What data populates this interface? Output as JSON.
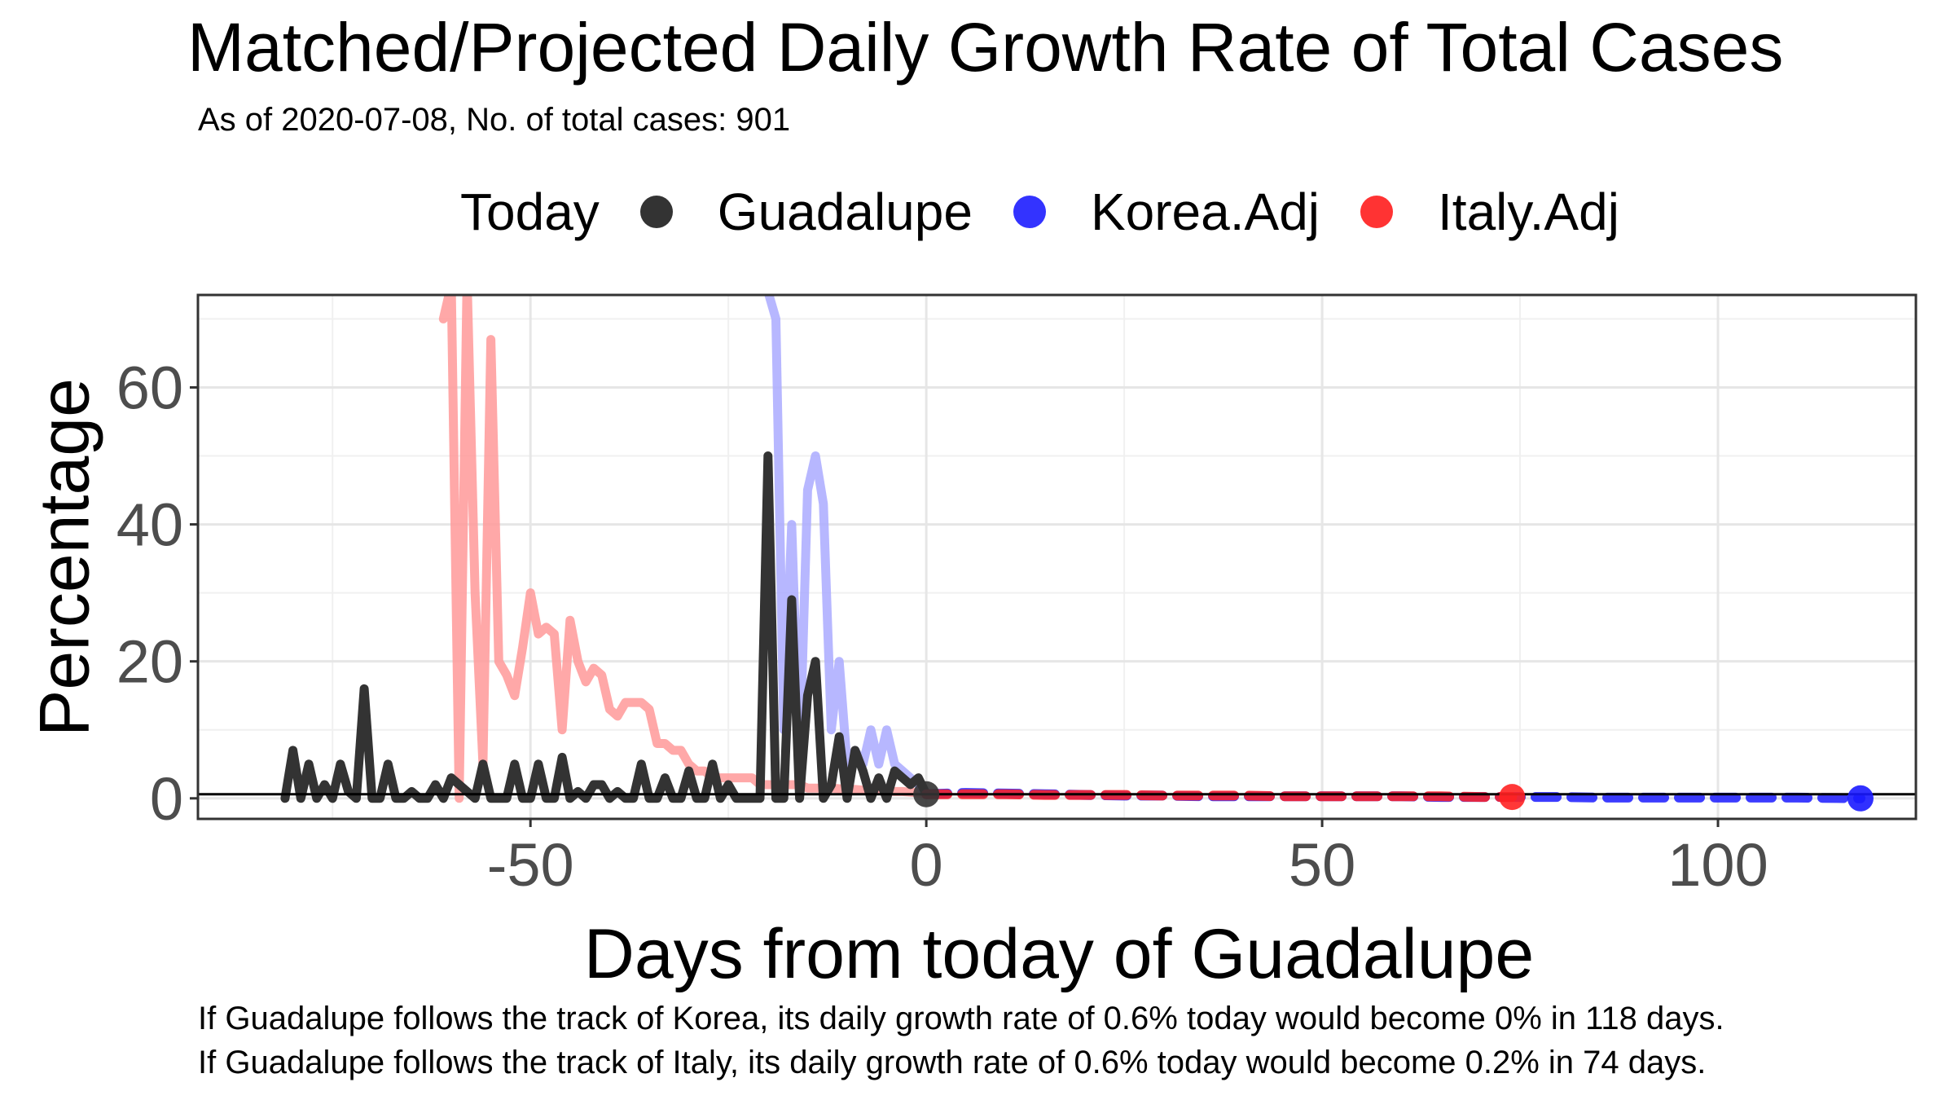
{
  "chart_data": {
    "type": "line",
    "title": "Matched/Projected Daily Growth Rate of Total Cases",
    "subtitle": "As of 2020-07-08, No. of total cases: 901",
    "xlabel": "Days from today of Guadalupe",
    "ylabel": "Percentage",
    "xlim": [
      -92,
      125
    ],
    "ylim": [
      -3,
      73.5
    ],
    "x_ticks": [
      -50,
      0,
      50,
      100
    ],
    "y_ticks": [
      0,
      20,
      40,
      60
    ],
    "x_tick_labels": [
      "-50",
      "0",
      "50",
      "100"
    ],
    "y_tick_labels": [
      "0",
      "20",
      "40",
      "60"
    ],
    "hline": 0.6,
    "legend": {
      "title": "Today",
      "position": "top",
      "entries": [
        {
          "label": "Guadalupe",
          "color": "#333333"
        },
        {
          "label": "Korea.Adj",
          "color": "#1a1aff"
        },
        {
          "label": "Italy.Adj",
          "color": "#ff2222"
        }
      ]
    },
    "series": [
      {
        "name": "Italy.Adj",
        "color": "#ff9999",
        "x": [
          -61,
          -60,
          -59,
          -58,
          -57,
          -56,
          -55,
          -54,
          -53,
          -52,
          -51,
          -50,
          -49,
          -48,
          -47,
          -46,
          -45,
          -44,
          -43,
          -42,
          -41,
          -40,
          -39,
          -38,
          -37,
          -36,
          -35,
          -34,
          -33,
          -32,
          -31,
          -30,
          -29,
          -28,
          -27,
          -26,
          -25,
          -24,
          -23,
          -22,
          -21,
          -20,
          -19,
          -18,
          -17,
          -16,
          -15,
          -14,
          -13,
          -12,
          -11,
          -10,
          -9,
          -8,
          -7,
          -6,
          -5,
          -4,
          -3,
          -2,
          -1,
          0
        ],
        "values": [
          70,
          75,
          0,
          76,
          30,
          5,
          67,
          20,
          18,
          15,
          22,
          30,
          24,
          25,
          24,
          10,
          26,
          20,
          17,
          19,
          18,
          13,
          12,
          14,
          14,
          14,
          13,
          8,
          8,
          7,
          7,
          5,
          4,
          4,
          3,
          3,
          3,
          3,
          3,
          3,
          2,
          2,
          2,
          2,
          2,
          2,
          1.5,
          1.5,
          1.5,
          1.5,
          1.4,
          1.3,
          1.3,
          1.2,
          1.2,
          1.1,
          1.1,
          1.0,
          1.0,
          0.9,
          0.8,
          0.6
        ]
      },
      {
        "name": "Korea.Adj",
        "color": "#aaaaff",
        "x": [
          -20,
          -19,
          -18,
          -17,
          -16,
          -15,
          -14,
          -13,
          -12,
          -11,
          -10,
          -9,
          -8,
          -7,
          -6,
          -5,
          -4,
          -3,
          -2,
          -1,
          0
        ],
        "values": [
          74,
          70,
          10,
          40,
          5,
          45,
          50,
          43,
          10,
          20,
          5,
          7,
          5,
          10,
          5,
          10,
          5,
          4,
          3,
          2,
          0.6
        ]
      },
      {
        "name": "Guadalupe",
        "color": "#333333",
        "x": [
          -81,
          -80,
          -79,
          -78,
          -77,
          -76,
          -75,
          -74,
          -73,
          -72,
          -71,
          -70,
          -69,
          -68,
          -67,
          -66,
          -65,
          -64,
          -63,
          -62,
          -61,
          -60,
          -59,
          -58,
          -57,
          -56,
          -55,
          -54,
          -53,
          -52,
          -51,
          -50,
          -49,
          -48,
          -47,
          -46,
          -45,
          -44,
          -43,
          -42,
          -41,
          -40,
          -39,
          -38,
          -37,
          -36,
          -35,
          -34,
          -33,
          -32,
          -31,
          -30,
          -29,
          -28,
          -27,
          -26,
          -25,
          -24,
          -23,
          -22,
          -21,
          -20,
          -19,
          -18,
          -17,
          -16,
          -15,
          -14,
          -13,
          -12,
          -11,
          -10,
          -9,
          -8,
          -7,
          -6,
          -5,
          -4,
          -3,
          -2,
          -1,
          0
        ],
        "values": [
          0,
          7,
          0,
          5,
          0,
          2,
          0,
          5,
          1,
          0,
          16,
          0,
          0,
          5,
          0,
          0,
          1,
          0,
          0,
          2,
          0,
          3,
          2,
          1,
          0,
          5,
          0,
          0,
          0,
          5,
          0,
          0,
          5,
          0,
          0,
          6,
          0,
          1,
          0,
          2,
          2,
          0,
          1,
          0,
          0,
          5,
          0,
          0,
          3,
          0,
          0,
          4,
          0,
          0,
          5,
          0,
          2,
          0,
          0,
          0,
          0,
          50,
          0,
          0,
          29,
          0,
          15,
          20,
          0,
          2,
          9,
          0,
          7,
          4,
          0,
          3,
          0,
          4,
          3,
          2,
          3,
          0.6
        ]
      },
      {
        "name": "Korea.Adj (projected)",
        "color": "#1a1aff",
        "x": [
          0,
          5,
          10,
          15,
          20,
          25,
          30,
          35,
          40,
          45,
          50,
          55,
          60,
          65,
          70,
          75,
          80,
          85,
          90,
          95,
          100,
          105,
          110,
          115,
          118
        ],
        "values": [
          0.6,
          0.8,
          0.7,
          0.6,
          0.5,
          0.4,
          0.4,
          0.3,
          0.3,
          0.3,
          0.3,
          0.3,
          0.3,
          0.2,
          0.2,
          0.2,
          0.2,
          0.1,
          0.1,
          0.1,
          0.1,
          0.1,
          0.1,
          0.05,
          0
        ]
      },
      {
        "name": "Italy.Adj (projected)",
        "color": "#ff2222",
        "x": [
          0,
          5,
          10,
          15,
          20,
          25,
          30,
          35,
          40,
          45,
          50,
          55,
          60,
          65,
          70,
          74
        ],
        "values": [
          0.6,
          0.6,
          0.6,
          0.5,
          0.5,
          0.5,
          0.4,
          0.4,
          0.4,
          0.3,
          0.3,
          0.3,
          0.3,
          0.3,
          0.2,
          0.2
        ]
      }
    ],
    "today_points": [
      {
        "series": "Guadalupe",
        "x": 0,
        "y": 0.6,
        "color": "#333333"
      },
      {
        "series": "Korea.Adj",
        "x": 118,
        "y": 0,
        "color": "#1a1aff"
      },
      {
        "series": "Italy.Adj",
        "x": 74,
        "y": 0.2,
        "color": "#ff2222"
      }
    ]
  },
  "captions": [
    "If Guadalupe follows the track of Korea, its daily growth rate of 0.6% today would become 0% in 118 days.",
    "If Guadalupe follows the track of Italy, its daily growth rate of 0.6% today would become 0.2% in 74 days."
  ]
}
